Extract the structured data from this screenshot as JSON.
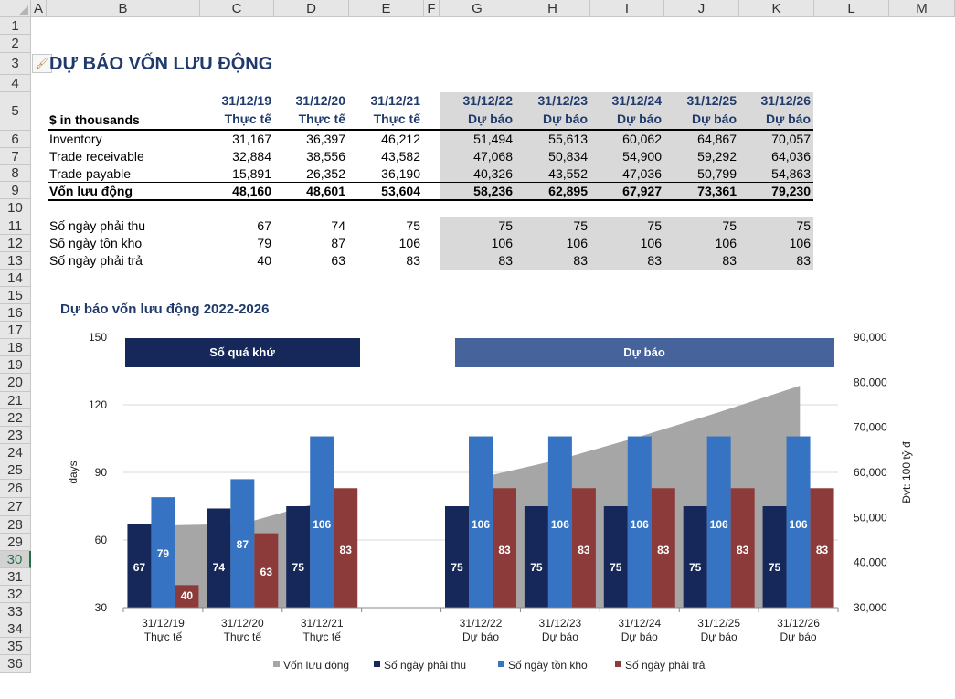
{
  "columns": [
    "A",
    "B",
    "C",
    "D",
    "E",
    "F",
    "G",
    "H",
    "I",
    "J",
    "K",
    "L",
    "M"
  ],
  "rows": [
    "1",
    "2",
    "3",
    "4",
    "5",
    "6",
    "7",
    "8",
    "9",
    "10",
    "11",
    "12",
    "13",
    "14",
    "15",
    "16",
    "17",
    "18",
    "19",
    "20",
    "21",
    "22",
    "23",
    "24",
    "25",
    "26",
    "27",
    "28",
    "29",
    "30",
    "31",
    "32",
    "33",
    "34",
    "35",
    "36"
  ],
  "selected_row": "30",
  "title": "DỰ BÁO VỐN LƯU ĐỘNG",
  "table": {
    "unit_label": "$ in thousands",
    "dates": [
      "31/12/19",
      "31/12/20",
      "31/12/21",
      "31/12/22",
      "31/12/23",
      "31/12/24",
      "31/12/25",
      "31/12/26"
    ],
    "kinds": [
      "Thực tế",
      "Thực tế",
      "Thực tế",
      "Dự báo",
      "Dự báo",
      "Dự báo",
      "Dự báo",
      "Dự báo"
    ],
    "rows": [
      {
        "label": "Inventory",
        "values": [
          "31,167",
          "36,397",
          "46,212",
          "51,494",
          "55,613",
          "60,062",
          "64,867",
          "70,057"
        ]
      },
      {
        "label": "Trade receivable",
        "values": [
          "32,884",
          "38,556",
          "43,582",
          "47,068",
          "50,834",
          "54,900",
          "59,292",
          "64,036"
        ]
      },
      {
        "label": "Trade payable",
        "values": [
          "15,891",
          "26,352",
          "36,190",
          "40,326",
          "43,552",
          "47,036",
          "50,799",
          "54,863"
        ]
      },
      {
        "label": "Vốn lưu động",
        "values": [
          "48,160",
          "48,601",
          "53,604",
          "58,236",
          "62,895",
          "67,927",
          "73,361",
          "79,230"
        ]
      },
      {
        "label": "Số ngày phải thu",
        "values": [
          "67",
          "74",
          "75",
          "75",
          "75",
          "75",
          "75",
          "75"
        ]
      },
      {
        "label": "Số ngày tồn kho",
        "values": [
          "79",
          "87",
          "106",
          "106",
          "106",
          "106",
          "106",
          "106"
        ]
      },
      {
        "label": "Số ngày phải trả",
        "values": [
          "40",
          "63",
          "83",
          "83",
          "83",
          "83",
          "83",
          "83"
        ]
      }
    ]
  },
  "chart_data": {
    "type": "bar",
    "title": "Dự báo vốn lưu động 2022-2026",
    "ylabel": "days",
    "y2label": "Đvt: 100 tỷ đ",
    "ylim": [
      30,
      150
    ],
    "y2lim": [
      30000,
      90000
    ],
    "yticks": [
      "30",
      "60",
      "90",
      "120",
      "150"
    ],
    "y2ticks": [
      "30,000",
      "40,000",
      "50,000",
      "60,000",
      "70,000",
      "80,000",
      "90,000"
    ],
    "banner_past": "Số quá khứ",
    "banner_forecast": "Dự báo",
    "categories": [
      {
        "date": "31/12/19",
        "kind": "Thực tế"
      },
      {
        "date": "31/12/20",
        "kind": "Thực tế"
      },
      {
        "date": "31/12/21",
        "kind": "Thực tế"
      },
      {
        "date": "",
        "kind": ""
      },
      {
        "date": "31/12/22",
        "kind": "Dự báo"
      },
      {
        "date": "31/12/23",
        "kind": "Dự báo"
      },
      {
        "date": "31/12/24",
        "kind": "Dự báo"
      },
      {
        "date": "31/12/25",
        "kind": "Dự báo"
      },
      {
        "date": "31/12/26",
        "kind": "Dự báo"
      }
    ],
    "series": [
      {
        "name": "Số ngày phải thu",
        "type": "bar",
        "color": "#16285a",
        "values": [
          67,
          74,
          75,
          null,
          75,
          75,
          75,
          75,
          75
        ]
      },
      {
        "name": "Số ngày tồn kho",
        "type": "bar",
        "color": "#3673c2",
        "values": [
          79,
          87,
          106,
          null,
          106,
          106,
          106,
          106,
          106
        ]
      },
      {
        "name": "Số ngày phải trả",
        "type": "bar",
        "color": "#8c3a3a",
        "values": [
          40,
          63,
          83,
          null,
          83,
          83,
          83,
          83,
          83
        ]
      },
      {
        "name": "Vốn lưu động",
        "type": "area",
        "axis": "secondary",
        "color": "#a6a6a6",
        "values": [
          48160,
          48601,
          53604,
          null,
          58236,
          62895,
          67927,
          73361,
          79230
        ]
      }
    ],
    "legend": [
      "Vốn lưu động",
      "Số ngày phải thu",
      "Số ngày tồn kho",
      "Số ngày phải trả"
    ],
    "legend_colors": [
      "#a6a6a6",
      "#16285a",
      "#3673c2",
      "#8c3a3a"
    ]
  }
}
